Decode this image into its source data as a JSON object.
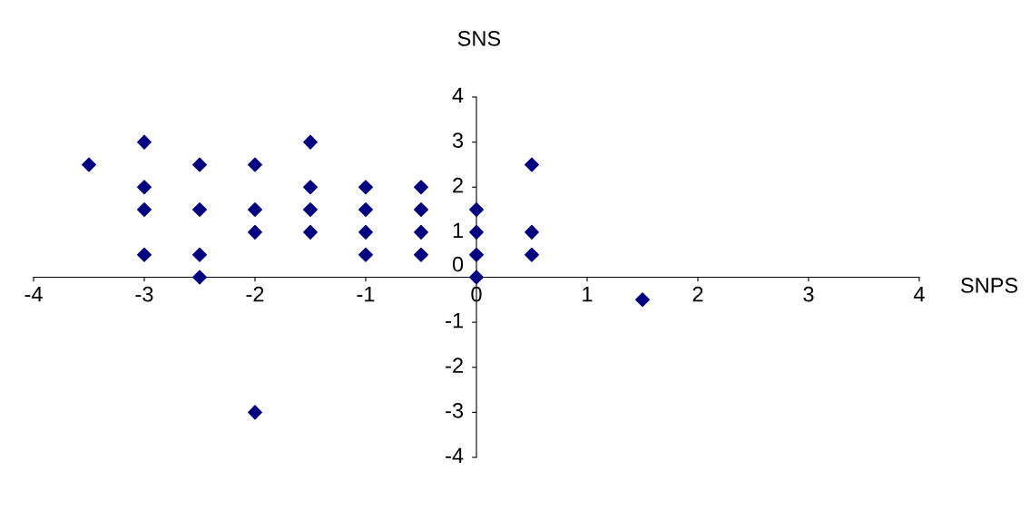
{
  "chart_data": {
    "type": "scatter",
    "xlabel": "SNPS",
    "ylabel": "SNS",
    "xlim": [
      -4,
      4
    ],
    "ylim": [
      -4,
      4
    ],
    "xticks": [
      -4,
      -3,
      -2,
      -1,
      0,
      1,
      2,
      3,
      4
    ],
    "yticks": [
      -4,
      -3,
      -2,
      -1,
      0,
      1,
      2,
      3,
      4
    ],
    "marker": "diamond",
    "grid": false,
    "series": [
      {
        "color": "#000080",
        "x": [
          -3.5,
          -3,
          -3,
          -3,
          -3,
          -2.5,
          -2.5,
          -2.5,
          -2.5,
          -2,
          -2,
          -2,
          -2,
          -1.5,
          -1.5,
          -1.5,
          -1.5,
          -1,
          -1,
          -1,
          -1,
          -0.5,
          -0.5,
          -0.5,
          -0.5,
          0,
          0,
          0,
          0,
          0.5,
          0.5,
          0.5,
          1.5
        ],
        "values": [
          2.5,
          3,
          2,
          1.5,
          0.5,
          2.5,
          1.5,
          0.5,
          0,
          2.5,
          1.5,
          1,
          -3,
          3,
          2,
          1.5,
          1,
          2,
          1.5,
          1,
          0.5,
          2,
          1.5,
          1,
          0.5,
          1.5,
          1,
          0.5,
          0,
          2.5,
          1,
          0.5,
          -0.5
        ]
      }
    ]
  }
}
